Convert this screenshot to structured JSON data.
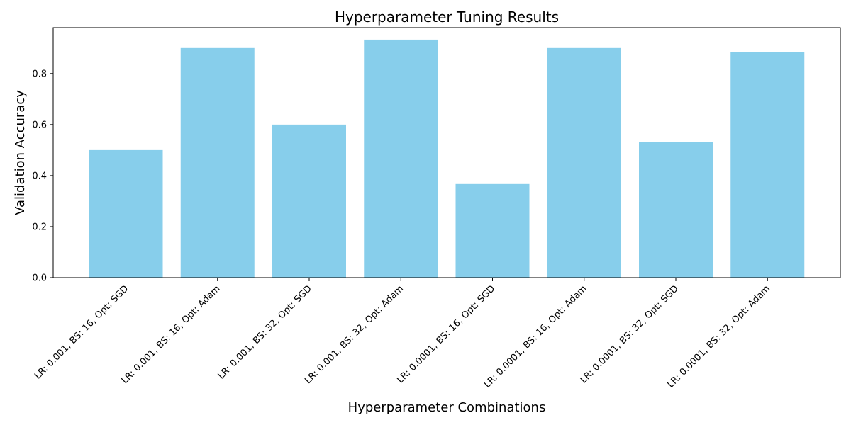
{
  "chart_data": {
    "type": "bar",
    "title": "Hyperparameter Tuning Results",
    "xlabel": "Hyperparameter Combinations",
    "ylabel": "Validation Accuracy",
    "categories": [
      "LR: 0.001, BS: 16, Opt: SGD",
      "LR: 0.001, BS: 16, Opt: Adam",
      "LR: 0.001, BS: 32, Opt: SGD",
      "LR: 0.001, BS: 32, Opt: Adam",
      "LR: 0.0001, BS: 16, Opt: SGD",
      "LR: 0.0001, BS: 16, Opt: Adam",
      "LR: 0.0001, BS: 32, Opt: SGD",
      "LR: 0.0001, BS: 32, Opt: Adam"
    ],
    "values": [
      0.5,
      0.9,
      0.6,
      0.933,
      0.367,
      0.9,
      0.533,
      0.883
    ],
    "ylim": [
      0,
      0.98
    ],
    "yticks": [
      0.0,
      0.2,
      0.4,
      0.6,
      0.8
    ],
    "ytick_labels": [
      "0.0",
      "0.2",
      "0.4",
      "0.6",
      "0.8"
    ],
    "bar_color": "#87ceeb",
    "grid": false,
    "legend": "none"
  }
}
